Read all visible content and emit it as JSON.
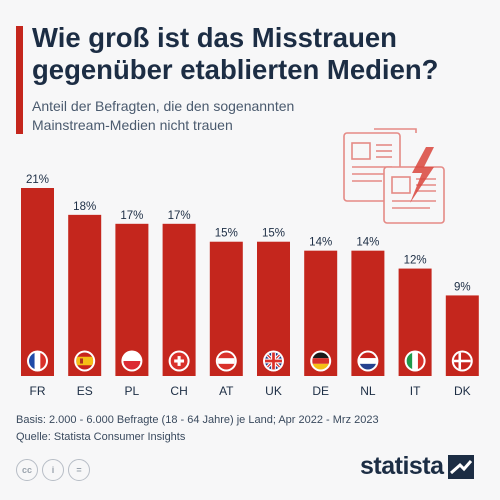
{
  "header": {
    "title": "Wie groß ist das Misstrauen gegenüber etablierten Medien?",
    "subtitle": "Anteil der Befragten, die den sogenannten Mainstream-Medien nicht trauen"
  },
  "colors": {
    "accent": "#c4261d",
    "bar": "#c4261d",
    "title": "#1c2d44"
  },
  "chart_data": {
    "type": "bar",
    "title": "Wie groß ist das Misstrauen gegenüber etablierten Medien?",
    "xlabel": "",
    "ylabel": "",
    "ylim": [
      0,
      21
    ],
    "grid": false,
    "categories": [
      "FR",
      "ES",
      "PL",
      "CH",
      "AT",
      "UK",
      "DE",
      "NL",
      "IT",
      "DK"
    ],
    "values": [
      21,
      18,
      17,
      17,
      15,
      15,
      14,
      14,
      12,
      9
    ],
    "data_labels": [
      "21%",
      "18%",
      "17%",
      "17%",
      "15%",
      "15%",
      "14%",
      "14%",
      "12%",
      "9%"
    ],
    "flags": [
      "france-flag-icon",
      "spain-flag-icon",
      "poland-flag-icon",
      "switzerland-flag-icon",
      "austria-flag-icon",
      "uk-flag-icon",
      "germany-flag-icon",
      "netherlands-flag-icon",
      "italy-flag-icon",
      "denmark-flag-icon"
    ]
  },
  "footer": {
    "basis": "Basis: 2.000 - 6.000 Befragte (18 - 64 Jahre) je Land; Apr 2022 - Mrz 2023",
    "source": "Quelle: Statista Consumer Insights",
    "license_icons": [
      "cc",
      "i",
      "="
    ],
    "logo": "statista"
  }
}
